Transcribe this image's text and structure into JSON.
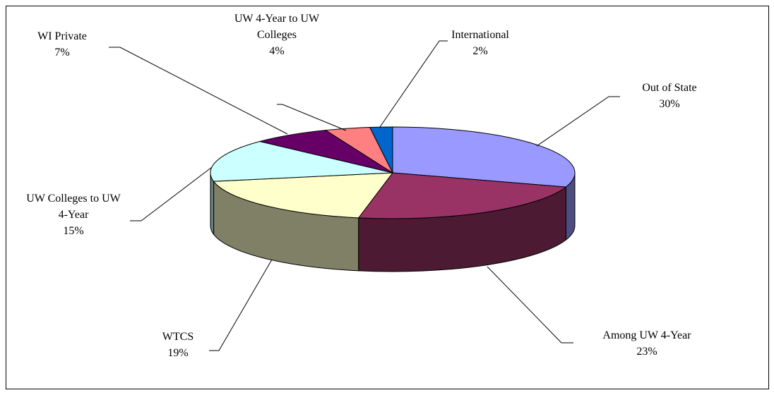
{
  "chart_data": {
    "type": "pie3d",
    "categories": [
      "Out of State",
      "Among UW 4-Year",
      "WTCS",
      "UW Colleges to UW 4-Year",
      "WI Private",
      "UW 4-Year to UW Colleges",
      "International"
    ],
    "values": [
      30,
      23,
      19,
      15,
      7,
      4,
      2
    ],
    "value_labels": [
      "30%",
      "23%",
      "19%",
      "15%",
      "7%",
      "4%",
      "2%"
    ],
    "colors": [
      "#9999ff",
      "#993366",
      "#ffffcc",
      "#ccffff",
      "#660066",
      "#ff8080",
      "#0066cc"
    ]
  }
}
